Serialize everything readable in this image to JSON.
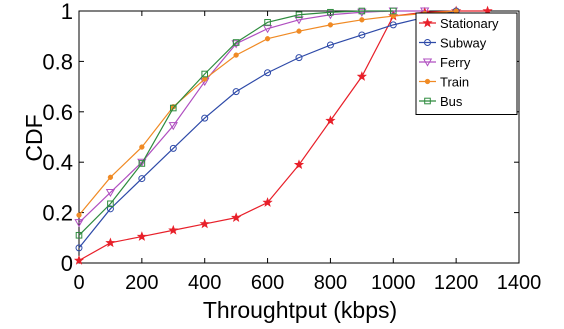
{
  "chart_data": {
    "type": "line",
    "title": "",
    "xlabel": "Throughtput (kbps)",
    "ylabel": "CDF",
    "xlim": [
      0,
      1400
    ],
    "ylim": [
      0,
      1
    ],
    "xticks": [
      "0",
      "200",
      "400",
      "600",
      "800",
      "1000",
      "1200",
      "1400"
    ],
    "yticks": [
      "0",
      "0.2",
      "0.4",
      "0.6",
      "0.8",
      "1"
    ],
    "grid": false,
    "legend_position": "top-right",
    "series": [
      {
        "name": "Stationary",
        "color": "#e8202a",
        "marker": "star",
        "x": [
          0,
          100,
          200,
          300,
          400,
          500,
          600,
          700,
          800,
          900,
          1000,
          1100,
          1200,
          1300
        ],
        "y": [
          0.01,
          0.08,
          0.105,
          0.13,
          0.155,
          0.18,
          0.24,
          0.39,
          0.565,
          0.74,
          0.98,
          0.995,
          1.0,
          1.0
        ]
      },
      {
        "name": "Subway",
        "color": "#2e4aa8",
        "marker": "circle",
        "x": [
          0,
          100,
          200,
          300,
          400,
          500,
          600,
          700,
          800,
          900,
          1000,
          1100,
          1200
        ],
        "y": [
          0.06,
          0.215,
          0.335,
          0.455,
          0.575,
          0.68,
          0.755,
          0.815,
          0.865,
          0.905,
          0.945,
          0.975,
          1.0
        ]
      },
      {
        "name": "Ferry",
        "color": "#b04fc0",
        "marker": "triangle-down",
        "x": [
          0,
          100,
          200,
          300,
          400,
          500,
          600,
          700,
          800,
          900,
          1000,
          1100
        ],
        "y": [
          0.16,
          0.28,
          0.4,
          0.545,
          0.72,
          0.87,
          0.93,
          0.965,
          0.985,
          0.995,
          1.0,
          1.0
        ]
      },
      {
        "name": "Train",
        "color": "#f08a24",
        "marker": "dot",
        "x": [
          0,
          100,
          200,
          300,
          400,
          500,
          600,
          700,
          800,
          900,
          1000,
          1100,
          1200
        ],
        "y": [
          0.19,
          0.34,
          0.46,
          0.62,
          0.73,
          0.825,
          0.89,
          0.92,
          0.945,
          0.965,
          0.98,
          0.99,
          1.0
        ]
      },
      {
        "name": "Bus",
        "color": "#2e8b3e",
        "marker": "square",
        "x": [
          0,
          100,
          200,
          300,
          400,
          500,
          600,
          700,
          800,
          900,
          1000
        ],
        "y": [
          0.11,
          0.235,
          0.395,
          0.615,
          0.75,
          0.875,
          0.955,
          0.985,
          0.995,
          1.0,
          1.0
        ]
      }
    ]
  }
}
